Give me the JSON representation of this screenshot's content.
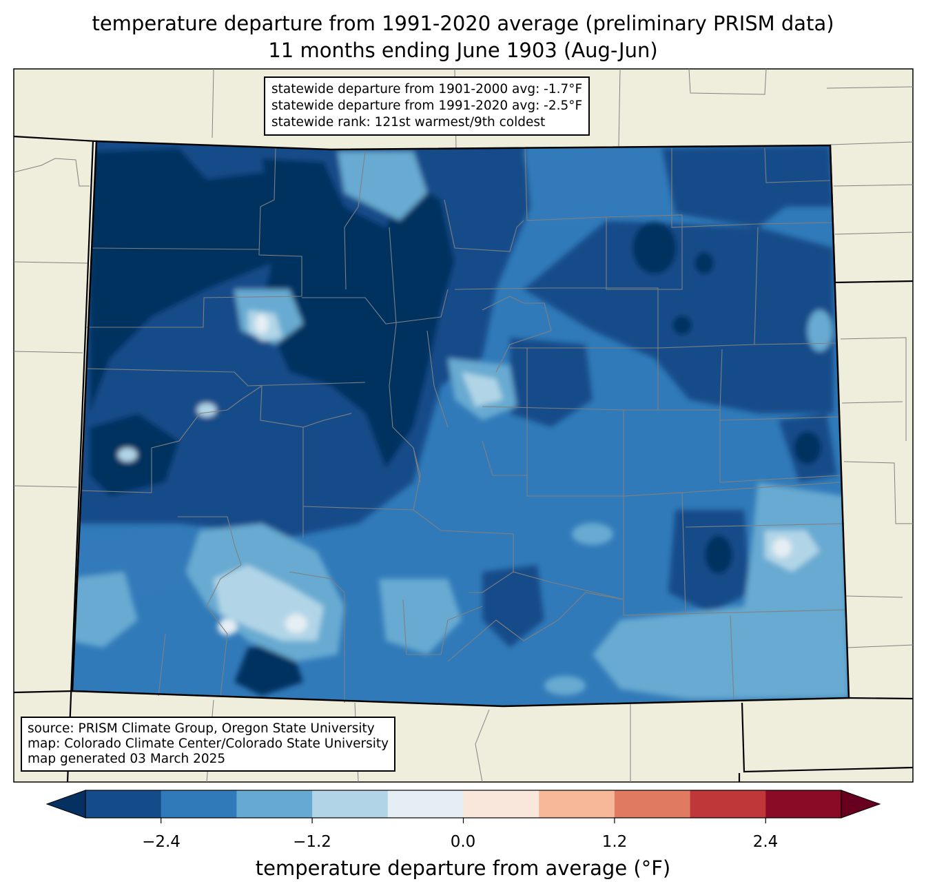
{
  "title": {
    "line1": "temperature departure from 1991-2020 average (preliminary PRISM data)",
    "line2": "11 months ending June 1903 (Aug-Jun)"
  },
  "stats": {
    "line1": "statewide departure from 1901-2000 avg: -1.7°F",
    "line2": "statewide departure from 1991-2020 avg: -2.5°F",
    "line3": "statewide rank: 121st warmest/9th coldest"
  },
  "credits": {
    "line1": "source: PRISM Climate Group, Oregon State University",
    "line2": "map: Colorado Climate Center/Colorado State University",
    "line3": "map generated 03 March 2025"
  },
  "colorbar": {
    "title": "temperature departure from average (°F)",
    "ticks": [
      "−2.4",
      "−1.2",
      "0.0",
      "1.2",
      "2.4"
    ],
    "under_color": "#053061",
    "over_color": "#67001f",
    "colors": [
      "#134c89",
      "#317ab9",
      "#67aad1",
      "#b1d5e7",
      "#e5eef3",
      "#fae7dc",
      "#f7b799",
      "#e07b62",
      "#c0373a",
      "#8a0b25"
    ]
  },
  "palette": {
    "land": "#efeedc",
    "state_border": "#000000",
    "county_border": "#808080"
  }
}
